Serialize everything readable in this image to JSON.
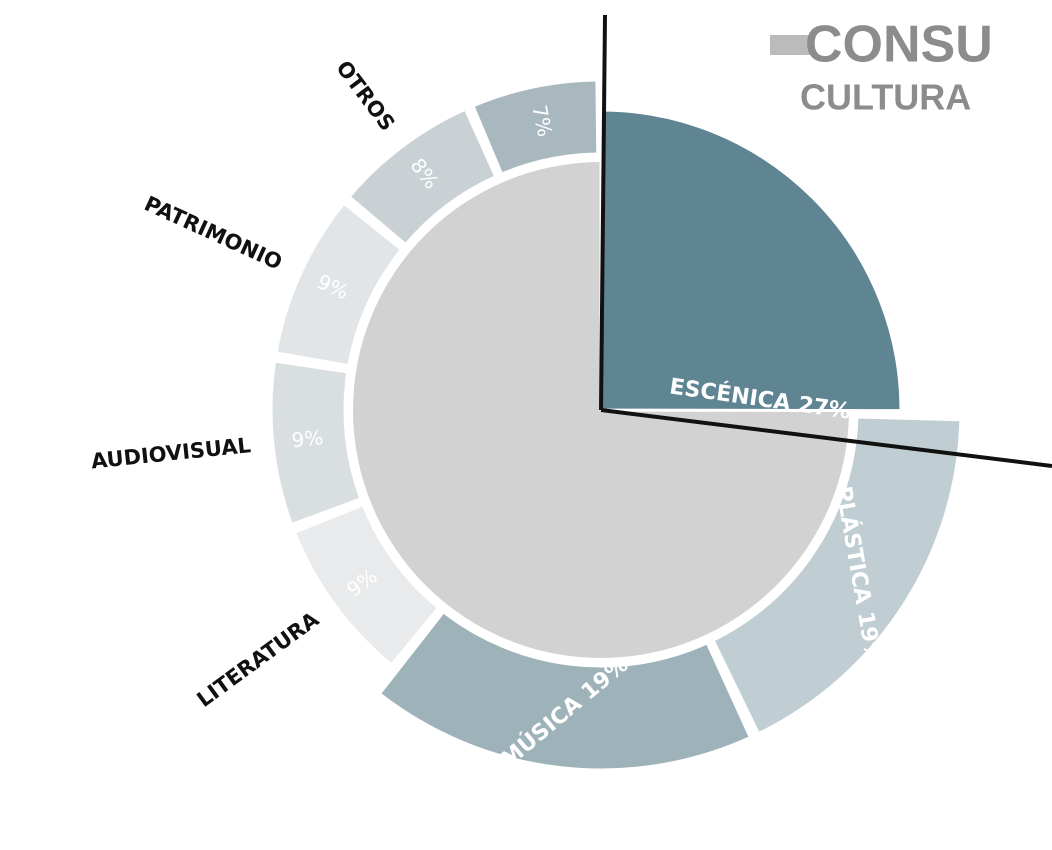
{
  "chart_data": {
    "type": "pie",
    "title": [
      "CONSU",
      "CULTURA"
    ],
    "categories": [
      "ESCÉNICA",
      "PLÁSTICA",
      "MÚSICA",
      "LITERATURA",
      "AUDIOVISUAL",
      "PATRIMONIO",
      "OTROS",
      null
    ],
    "values": [
      27,
      19,
      19,
      9,
      9,
      9,
      8,
      7
    ],
    "value_labels": [
      "27%",
      "19%",
      "19%",
      "9%",
      "9%",
      "9%",
      "8%",
      "7%"
    ],
    "colors": [
      "#5f8593",
      "#c0cdd2",
      "#9eb2ba",
      "#e8eaeb",
      "#d9dfe1",
      "#e1e5e7",
      "#c9d1d5",
      "#a9b8bf"
    ]
  }
}
